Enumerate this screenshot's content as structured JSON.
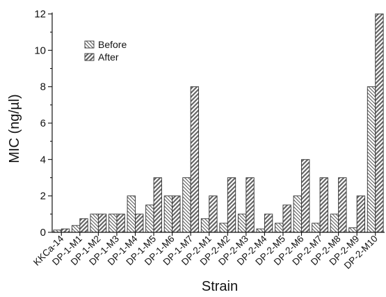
{
  "chart_data": {
    "type": "bar",
    "title": "",
    "xlabel": "Strain",
    "ylabel": "MIC (ng/µl)",
    "ylim": [
      0,
      12
    ],
    "yticks": [
      0,
      2,
      4,
      6,
      8,
      10,
      12
    ],
    "grid": false,
    "legend_position": "top-left",
    "categories": [
      "KKCa-14",
      "DP-1-M1",
      "DP-1-M2",
      "DP-1-M3",
      "DP-1-M4",
      "DP-1-M5",
      "DP-1-M6",
      "DP-1-M7",
      "DP-2-M1",
      "DP-2-M2",
      "DP-2-M3",
      "DP-2-M4",
      "DP-2-M5",
      "DP-2-M6",
      "DP-2-M7",
      "DP-2-M8",
      "DP-2-M9",
      "DP-2-M10"
    ],
    "series": [
      {
        "name": "Before",
        "pattern": "back-hatch",
        "values": [
          0.125,
          0.375,
          1.0,
          1.0,
          2.0,
          1.5,
          2.0,
          3.0,
          0.75,
          0.5,
          1.0,
          0.188,
          0.5,
          2.0,
          0.5,
          1.0,
          0.25,
          8.0
        ]
      },
      {
        "name": "After",
        "pattern": "forward-hatch",
        "values": [
          0.188,
          0.75,
          1.0,
          1.0,
          1.0,
          3.0,
          2.0,
          8.0,
          2.0,
          3.0,
          3.0,
          1.0,
          1.5,
          4.0,
          3.0,
          3.0,
          2.0,
          12.0
        ]
      }
    ]
  }
}
